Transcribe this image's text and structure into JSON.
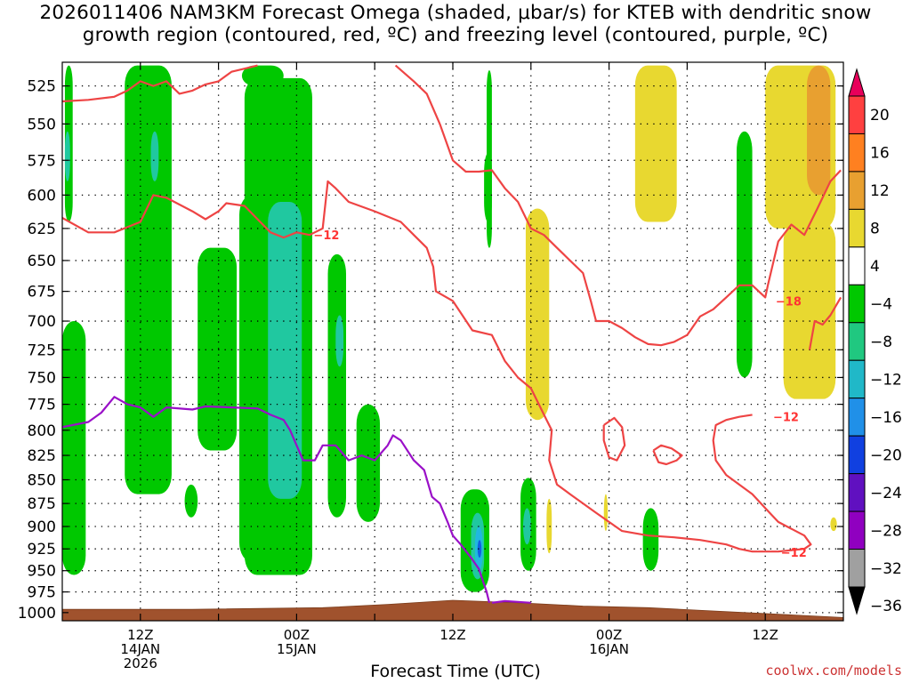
{
  "title": {
    "line1": "2026011406 NAM3KM Forecast Omega (shaded, μbar/s) for KTEB with dendritic snow",
    "line2": "growth region (contoured, red, ºC) and freezing level (contoured, purple, ºC)"
  },
  "footer": {
    "xlabel": "Forecast Time (UTC)",
    "credit": "coolwx.com/models"
  },
  "chart_data": {
    "type": "heatmap",
    "title": "2026011406 NAM3KM Forecast Omega (shaded, μbar/s) for KTEB",
    "xlabel": "Forecast Time (UTC)",
    "ylabel": "",
    "x_unit": "hours since 2026-01-14 06Z",
    "xlim": [
      0,
      60
    ],
    "ylim": [
      1010,
      510
    ],
    "y_scale": "log-pressure",
    "grid": true,
    "pressure_levels": [
      525,
      550,
      575,
      600,
      625,
      650,
      675,
      700,
      725,
      750,
      775,
      800,
      825,
      850,
      875,
      900,
      925,
      950,
      975,
      1000
    ],
    "x_ticks": [
      {
        "hour": 6,
        "lines": [
          "12Z",
          "14JAN",
          "2026"
        ]
      },
      {
        "hour": 18,
        "lines": [
          "00Z",
          "15JAN"
        ]
      },
      {
        "hour": 30,
        "lines": [
          "12Z"
        ]
      },
      {
        "hour": 42,
        "lines": [
          "00Z",
          "16JAN"
        ]
      },
      {
        "hour": 54,
        "lines": [
          "12Z"
        ]
      }
    ],
    "colorbar": {
      "labels": [
        "20",
        "16",
        "12",
        "8",
        "4",
        "−4",
        "−8",
        "−12",
        "−16",
        "−20",
        "−24",
        "−28",
        "−32",
        "−36"
      ],
      "colors": [
        "#e8005a",
        "#ff4040",
        "#ff8020",
        "#e8a030",
        "#e8d830",
        "#ffffff",
        "#00c800",
        "#20c880",
        "#20b8c8",
        "#2090e8",
        "#1040e0",
        "#6010c0",
        "#9000c0",
        "#a0a0a0",
        "#000000"
      ]
    },
    "omega_regions": [
      {
        "name": "green",
        "value": -6,
        "color": "#00c800",
        "blobs": [
          {
            "x": [
              0.2,
              0.8
            ],
            "p": [
              512,
              620
            ]
          },
          {
            "x": [
              0,
              1.8
            ],
            "p": [
              700,
              955
            ]
          },
          {
            "x": [
              4.8,
              8.4
            ],
            "p": [
              512,
              865
            ]
          },
          {
            "x": [
              10.4,
              13.4
            ],
            "p": [
              640,
              820
            ]
          },
          {
            "x": [
              9.4,
              10.4
            ],
            "p": [
              855,
              890
            ]
          },
          {
            "x": [
              13.8,
              17.0
            ],
            "p": [
              512,
              525
            ]
          },
          {
            "x": [
              14.0,
              19.2
            ],
            "p": [
              520,
              955
            ]
          },
          {
            "x": [
              13.6,
              15.8
            ],
            "p": [
              600,
              940
            ]
          },
          {
            "x": [
              20.4,
              21.8
            ],
            "p": [
              645,
              890
            ]
          },
          {
            "x": [
              22.6,
              24.4
            ],
            "p": [
              775,
              895
            ]
          },
          {
            "x": [
              30.6,
              32.8
            ],
            "p": [
              860,
              975
            ]
          },
          {
            "x": [
              35.2,
              36.4
            ],
            "p": [
              848,
              950
            ]
          },
          {
            "x": [
              32.6,
              33.0
            ],
            "p": [
              515,
              640
            ]
          },
          {
            "x": [
              32.4,
              33.0
            ],
            "p": [
              570,
              620
            ]
          },
          {
            "x": [
              44.6,
              45.8
            ],
            "p": [
              880,
              950
            ]
          },
          {
            "x": [
              51.8,
              53.0
            ],
            "p": [
              555,
              750
            ]
          }
        ]
      },
      {
        "name": "teal",
        "value": -10,
        "color": "#20c8a0",
        "blobs": [
          {
            "x": [
              0.2,
              0.6
            ],
            "p": [
              555,
              590
            ]
          },
          {
            "x": [
              6.8,
              7.4
            ],
            "p": [
              555,
              590
            ]
          },
          {
            "x": [
              15.8,
              18.4
            ],
            "p": [
              605,
              870
            ]
          },
          {
            "x": [
              21.0,
              21.6
            ],
            "p": [
              695,
              740
            ]
          },
          {
            "x": [
              31.4,
              32.4
            ],
            "p": [
              885,
              960
            ]
          },
          {
            "x": [
              35.4,
              36.0
            ],
            "p": [
              880,
              920
            ]
          }
        ]
      },
      {
        "name": "cyan",
        "value": -14,
        "color": "#20b8e0",
        "blobs": [
          {
            "x": [
              31.7,
              32.3
            ],
            "p": [
              900,
              950
            ]
          }
        ]
      },
      {
        "name": "blue",
        "value": -18,
        "color": "#1060e0",
        "blobs": [
          {
            "x": [
              31.9,
              32.2
            ],
            "p": [
              915,
              935
            ]
          }
        ]
      },
      {
        "name": "yellow",
        "value": 6,
        "color": "#e8d830",
        "blobs": [
          {
            "x": [
              44.0,
              47.2
            ],
            "p": [
              512,
              620
            ]
          },
          {
            "x": [
              35.6,
              37.4
            ],
            "p": [
              610,
              790
            ]
          },
          {
            "x": [
              54.0,
              59.4
            ],
            "p": [
              512,
              625
            ]
          },
          {
            "x": [
              55.4,
              59.4
            ],
            "p": [
              620,
              770
            ]
          },
          {
            "x": [
              37.2,
              37.6
            ],
            "p": [
              870,
              930
            ]
          },
          {
            "x": [
              41.6,
              41.9
            ],
            "p": [
              865,
              905
            ]
          },
          {
            "x": [
              59.0,
              59.5
            ],
            "p": [
              890,
              905
            ]
          }
        ]
      },
      {
        "name": "orange",
        "value": 10,
        "color": "#e8a030",
        "blobs": [
          {
            "x": [
              57.2,
              59.0
            ],
            "p": [
              512,
              600
            ]
          }
        ]
      }
    ],
    "red_contours": [
      {
        "level": -12,
        "label_at": [
          19.5,
          628
        ],
        "points": [
          [
            0,
            617
          ],
          [
            2,
            628
          ],
          [
            4,
            628
          ],
          [
            6,
            620
          ],
          [
            7,
            600
          ],
          [
            8,
            602
          ],
          [
            10,
            612
          ],
          [
            11,
            618
          ],
          [
            12,
            612
          ],
          [
            12.6,
            606
          ],
          [
            14,
            608
          ],
          [
            15,
            618
          ],
          [
            16,
            628
          ],
          [
            17,
            632
          ],
          [
            18,
            628
          ],
          [
            19,
            630
          ],
          [
            20,
            625
          ],
          [
            20.4,
            590
          ],
          [
            21,
            595
          ],
          [
            22,
            605
          ],
          [
            24,
            612
          ],
          [
            26,
            620
          ],
          [
            27,
            630
          ],
          [
            28,
            640
          ],
          [
            28.5,
            655
          ],
          [
            28.7,
            675
          ],
          [
            30,
            683
          ],
          [
            31.5,
            708
          ],
          [
            33,
            712
          ],
          [
            34,
            735
          ],
          [
            35,
            750
          ],
          [
            36,
            760
          ],
          [
            37.2,
            790
          ],
          [
            37.6,
            800
          ],
          [
            37.4,
            830
          ],
          [
            38,
            855
          ],
          [
            39,
            865
          ],
          [
            41,
            885
          ],
          [
            43,
            905
          ],
          [
            45,
            910
          ],
          [
            47,
            912
          ],
          [
            49,
            915
          ],
          [
            51,
            920
          ],
          [
            52,
            925
          ],
          [
            53,
            928
          ],
          [
            55,
            928
          ],
          [
            57,
            925
          ],
          [
            57.5,
            920
          ],
          [
            57,
            910
          ],
          [
            55,
            895
          ],
          [
            54,
            880
          ],
          [
            53,
            865
          ],
          [
            51,
            845
          ],
          [
            50.2,
            830
          ],
          [
            50,
            810
          ],
          [
            50.2,
            795
          ],
          [
            51,
            790
          ],
          [
            52,
            787
          ],
          [
            53,
            785
          ]
        ]
      },
      {
        "level": -18,
        "label_at": [
          54.5,
          683
        ],
        "points": [
          [
            0,
            535
          ],
          [
            2,
            534
          ],
          [
            4,
            532
          ],
          [
            5,
            528
          ],
          [
            6,
            522
          ],
          [
            7,
            525
          ],
          [
            8,
            522
          ],
          [
            9,
            530
          ],
          [
            10,
            528
          ],
          [
            11,
            524
          ],
          [
            12,
            522
          ],
          [
            13,
            516
          ],
          [
            14,
            514
          ],
          [
            15,
            512
          ]
        ]
      },
      {
        "level": -18,
        "label_at": [
          54.5,
          683
        ],
        "points": [
          [
            25.6,
            512
          ],
          [
            27,
            522
          ],
          [
            28,
            530
          ],
          [
            29,
            550
          ],
          [
            30,
            575
          ],
          [
            31,
            583
          ],
          [
            32,
            583
          ],
          [
            33,
            582
          ],
          [
            34,
            595
          ],
          [
            35,
            605
          ],
          [
            36,
            625
          ],
          [
            37,
            630
          ],
          [
            38,
            640
          ],
          [
            39,
            650
          ],
          [
            40,
            660
          ],
          [
            40.6,
            683
          ],
          [
            41,
            700
          ],
          [
            42,
            700
          ],
          [
            43,
            706
          ],
          [
            44,
            714
          ],
          [
            45,
            720
          ],
          [
            46,
            721
          ],
          [
            47,
            718
          ],
          [
            48,
            712
          ],
          [
            49,
            696
          ],
          [
            50,
            690
          ],
          [
            51,
            680
          ],
          [
            52,
            670
          ],
          [
            53,
            670
          ],
          [
            54,
            680
          ],
          [
            54.2,
            670
          ],
          [
            55,
            635
          ],
          [
            56,
            622
          ],
          [
            57,
            630
          ],
          [
            58,
            610
          ],
          [
            59,
            590
          ],
          [
            59.8,
            582
          ]
        ]
      },
      {
        "level": -18,
        "label_at": [
          54.5,
          683
        ],
        "points": [
          [
            59.8,
            680
          ],
          [
            59,
            695
          ],
          [
            58.4,
            703
          ],
          [
            57.8,
            700
          ],
          [
            57.4,
            725
          ]
        ]
      },
      {
        "level": -12,
        "label_at": [
          42,
          820
        ],
        "points": [
          [
            41.6,
            795
          ],
          [
            42.4,
            788
          ],
          [
            43,
            797
          ],
          [
            43.2,
            815
          ],
          [
            42.6,
            830
          ],
          [
            42,
            827
          ],
          [
            41.6,
            810
          ],
          [
            41.6,
            795
          ]
        ]
      },
      {
        "level": -12,
        "label_at": [
          46,
          820
        ],
        "points": [
          [
            45.4,
            820
          ],
          [
            46,
            815
          ],
          [
            46.8,
            818
          ],
          [
            47.6,
            825
          ],
          [
            47.2,
            830
          ],
          [
            46.4,
            834
          ],
          [
            45.8,
            832
          ],
          [
            45.4,
            820
          ]
        ]
      }
    ],
    "contour_labels": [
      {
        "text": "−12",
        "x": 19.3,
        "p": 630
      },
      {
        "text": "−18",
        "x": 54.8,
        "p": 683
      },
      {
        "text": "−12",
        "x": 54.6,
        "p": 787
      },
      {
        "text": "−12",
        "x": 55.2,
        "p": 929
      }
    ],
    "purple_contours": [
      {
        "level": 0,
        "points": [
          [
            0,
            797
          ],
          [
            2,
            792
          ],
          [
            3,
            783
          ],
          [
            4,
            768
          ],
          [
            5,
            775
          ],
          [
            6,
            778
          ],
          [
            7,
            787
          ],
          [
            8,
            778
          ],
          [
            10,
            780
          ],
          [
            11,
            777
          ],
          [
            13,
            778
          ],
          [
            15,
            779
          ],
          [
            16,
            785
          ],
          [
            17,
            790
          ],
          [
            17.5,
            800
          ],
          [
            18,
            815
          ],
          [
            18.5,
            830
          ],
          [
            19.4,
            830
          ],
          [
            20,
            815
          ],
          [
            21,
            815
          ],
          [
            22,
            830
          ],
          [
            23,
            825
          ],
          [
            24,
            830
          ],
          [
            25,
            815
          ],
          [
            25.4,
            805
          ],
          [
            26,
            810
          ],
          [
            27,
            830
          ],
          [
            27.8,
            840
          ],
          [
            28.4,
            868
          ],
          [
            29,
            875
          ],
          [
            29.6,
            895
          ],
          [
            30,
            910
          ],
          [
            30.6,
            920
          ],
          [
            31.4,
            935
          ],
          [
            32,
            948
          ],
          [
            32.6,
            975
          ],
          [
            32.8,
            988
          ]
        ]
      },
      {
        "level": 0,
        "points": [
          [
            33,
            988
          ],
          [
            34,
            986
          ],
          [
            35,
            987
          ],
          [
            36,
            988
          ]
        ]
      }
    ],
    "terrain": {
      "color": "#a0522d",
      "top_p": [
        [
          0,
          996
        ],
        [
          10,
          996
        ],
        [
          20,
          994
        ],
        [
          25,
          990
        ],
        [
          30,
          985
        ],
        [
          35,
          988
        ],
        [
          40,
          992
        ],
        [
          45,
          994
        ],
        [
          50,
          998
        ],
        [
          55,
          1002
        ],
        [
          60,
          1006
        ]
      ]
    }
  }
}
